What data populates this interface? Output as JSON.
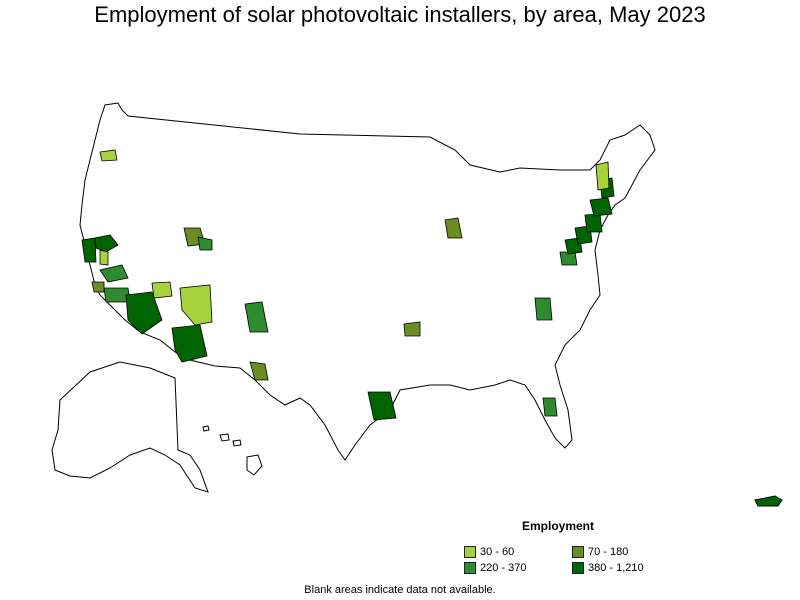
{
  "title": "Employment of solar photovoltaic installers, by area, May 2023",
  "legend": {
    "title": "Employment",
    "items": [
      {
        "label": "30 - 60",
        "color": "#a6d33c"
      },
      {
        "label": "70 - 180",
        "color": "#6b8e23"
      },
      {
        "label": "220 - 370",
        "color": "#2e8b2e"
      },
      {
        "label": "380 - 1,210",
        "color": "#006400"
      }
    ]
  },
  "footnote": "Blank areas indicate data not available.",
  "colors": {
    "c1": "#a6d33c",
    "c2": "#6b8e23",
    "c3": "#2e8b2e",
    "c4": "#006400",
    "outline": "#000000",
    "background": "#ffffff"
  }
}
